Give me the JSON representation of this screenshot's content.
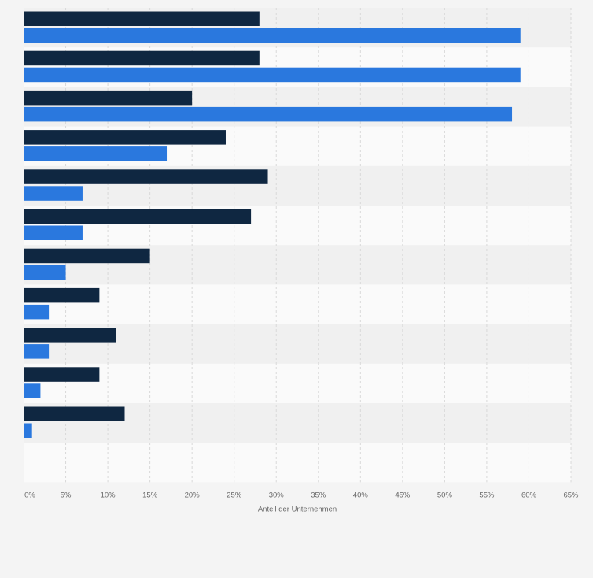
{
  "chart_data": {
    "type": "bar",
    "orientation": "horizontal",
    "categories": [
      "",
      "",
      "",
      "",
      "",
      "",
      "",
      "",
      "",
      "",
      ""
    ],
    "series": [
      {
        "color": "#0f2741",
        "values": [
          28,
          28,
          20,
          24,
          29,
          27,
          15,
          9,
          11,
          9,
          12
        ]
      },
      {
        "color": "#2a78de",
        "values": [
          59,
          59,
          58,
          17,
          7,
          7,
          5,
          3,
          3,
          2,
          1
        ]
      }
    ],
    "xlim": [
      0,
      65
    ],
    "x_ticks": [
      0,
      5,
      10,
      15,
      20,
      25,
      30,
      35,
      40,
      45,
      50,
      55,
      60,
      65
    ],
    "x_tick_labels": [
      "0%",
      "5%",
      "10%",
      "15%",
      "20%",
      "25%",
      "30%",
      "35%",
      "40%",
      "45%",
      "50%",
      "55%",
      "60%",
      "65%"
    ],
    "xlabel": "Anteil der Unternehmen",
    "ylabel": "",
    "title": "",
    "grid": true,
    "legend": "none"
  }
}
